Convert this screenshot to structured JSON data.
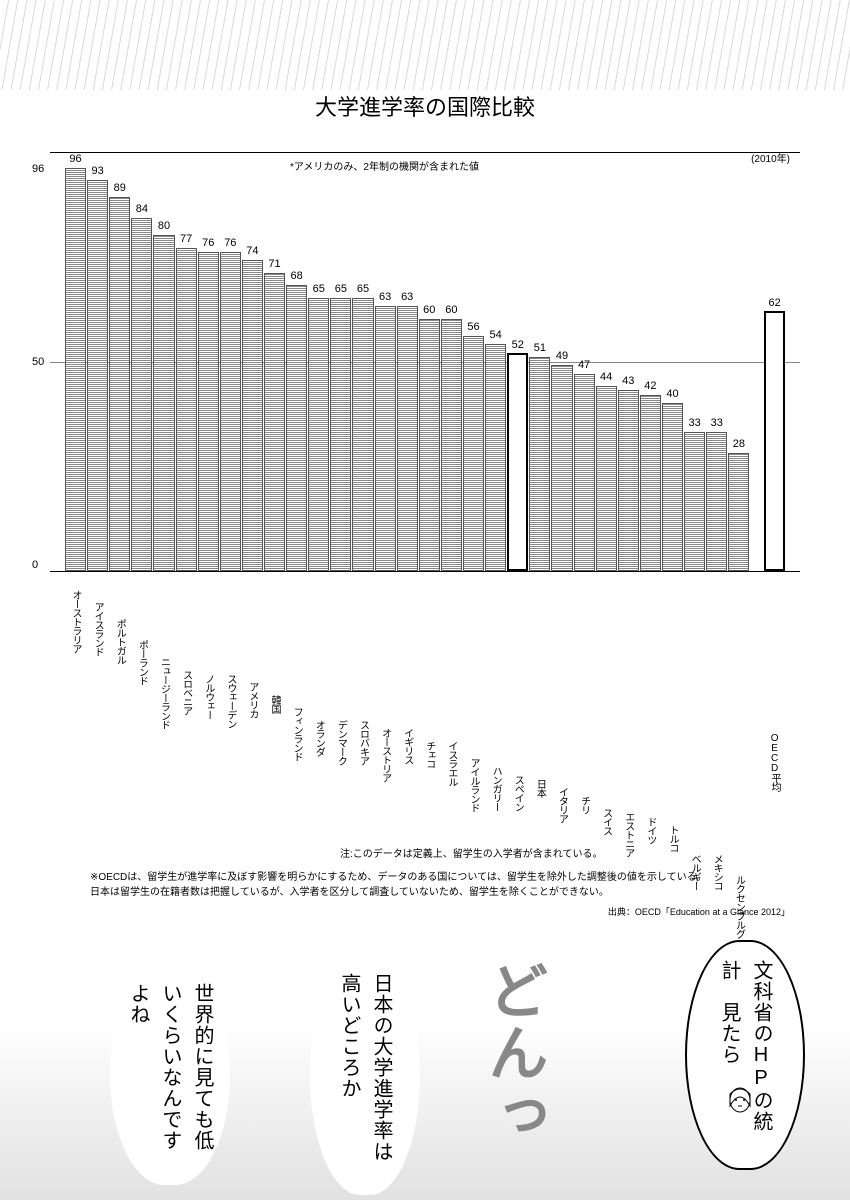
{
  "title": "大学進学率の国際比較",
  "year_label": "(2010年)",
  "subtitle_note": "*アメリカのみ、2年制の機関が含まれた値",
  "chart": {
    "type": "bar",
    "ylim_max": 100,
    "ylim_min": 0,
    "ytick_50": "50",
    "ytick_0": "0",
    "ytick_top": "96",
    "grid_color": "#888888",
    "bar_fill_pattern": "horizontal-hatch",
    "bar_border_color": "#555555",
    "highlight_indices": [
      20,
      31
    ],
    "bars": [
      {
        "label": "オーストラリア",
        "value": 96
      },
      {
        "label": "アイスランド",
        "value": 93
      },
      {
        "label": "ポルトガル",
        "value": 89
      },
      {
        "label": "ポーランド",
        "value": 84
      },
      {
        "label": "ニュージーランド",
        "value": 80
      },
      {
        "label": "スロベニア",
        "value": 77
      },
      {
        "label": "ノルウェー",
        "value": 76
      },
      {
        "label": "スウェーデン",
        "value": 76
      },
      {
        "label": "アメリカ",
        "value": 74
      },
      {
        "label": "韓国",
        "value": 71
      },
      {
        "label": "フィンランド",
        "value": 68
      },
      {
        "label": "オランダ",
        "value": 65
      },
      {
        "label": "デンマーク",
        "value": 65
      },
      {
        "label": "スロバキア",
        "value": 65
      },
      {
        "label": "オーストリア",
        "value": 63
      },
      {
        "label": "イギリス",
        "value": 63
      },
      {
        "label": "チェコ",
        "value": 60
      },
      {
        "label": "イスラエル",
        "value": 60
      },
      {
        "label": "アイルランド",
        "value": 56
      },
      {
        "label": "ハンガリー",
        "value": 54
      },
      {
        "label": "スペイン",
        "value": 52
      },
      {
        "label": "日本",
        "value": 51
      },
      {
        "label": "イタリア",
        "value": 49
      },
      {
        "label": "チリ",
        "value": 47
      },
      {
        "label": "スイス",
        "value": 44
      },
      {
        "label": "エストニア",
        "value": 43
      },
      {
        "label": "ドイツ",
        "value": 42
      },
      {
        "label": "トルコ",
        "value": 40
      },
      {
        "label": "ベルギー",
        "value": 33
      },
      {
        "label": "メキシコ",
        "value": 33
      },
      {
        "label": "ルクセンブルグ",
        "value": 28
      },
      {
        "label": "OECD平均",
        "value": 62
      }
    ]
  },
  "footnote_below": "注:このデータは定義上、留学生の入学者が含まれている。",
  "oecd_note_line1": "※OECDは、留学生が進学率に及ぼす影響を明らかにするため、データのある国については、留学生を除外した調整後の値を示している。",
  "oecd_note_line2": "日本は留学生の在籍者数は把握しているが、入学者を区分して調査していないため、留学生を除くことができない。",
  "source": "出典：OECD「Education at a Glance 2012」",
  "bubble1_text": "文科省のHPの統計　見たら",
  "bubble2_text": "日本の大学進学率は高いどころか",
  "bubble3_text": "世界的に見ても低いくらいなんですよね",
  "sfx": "どんっ"
}
